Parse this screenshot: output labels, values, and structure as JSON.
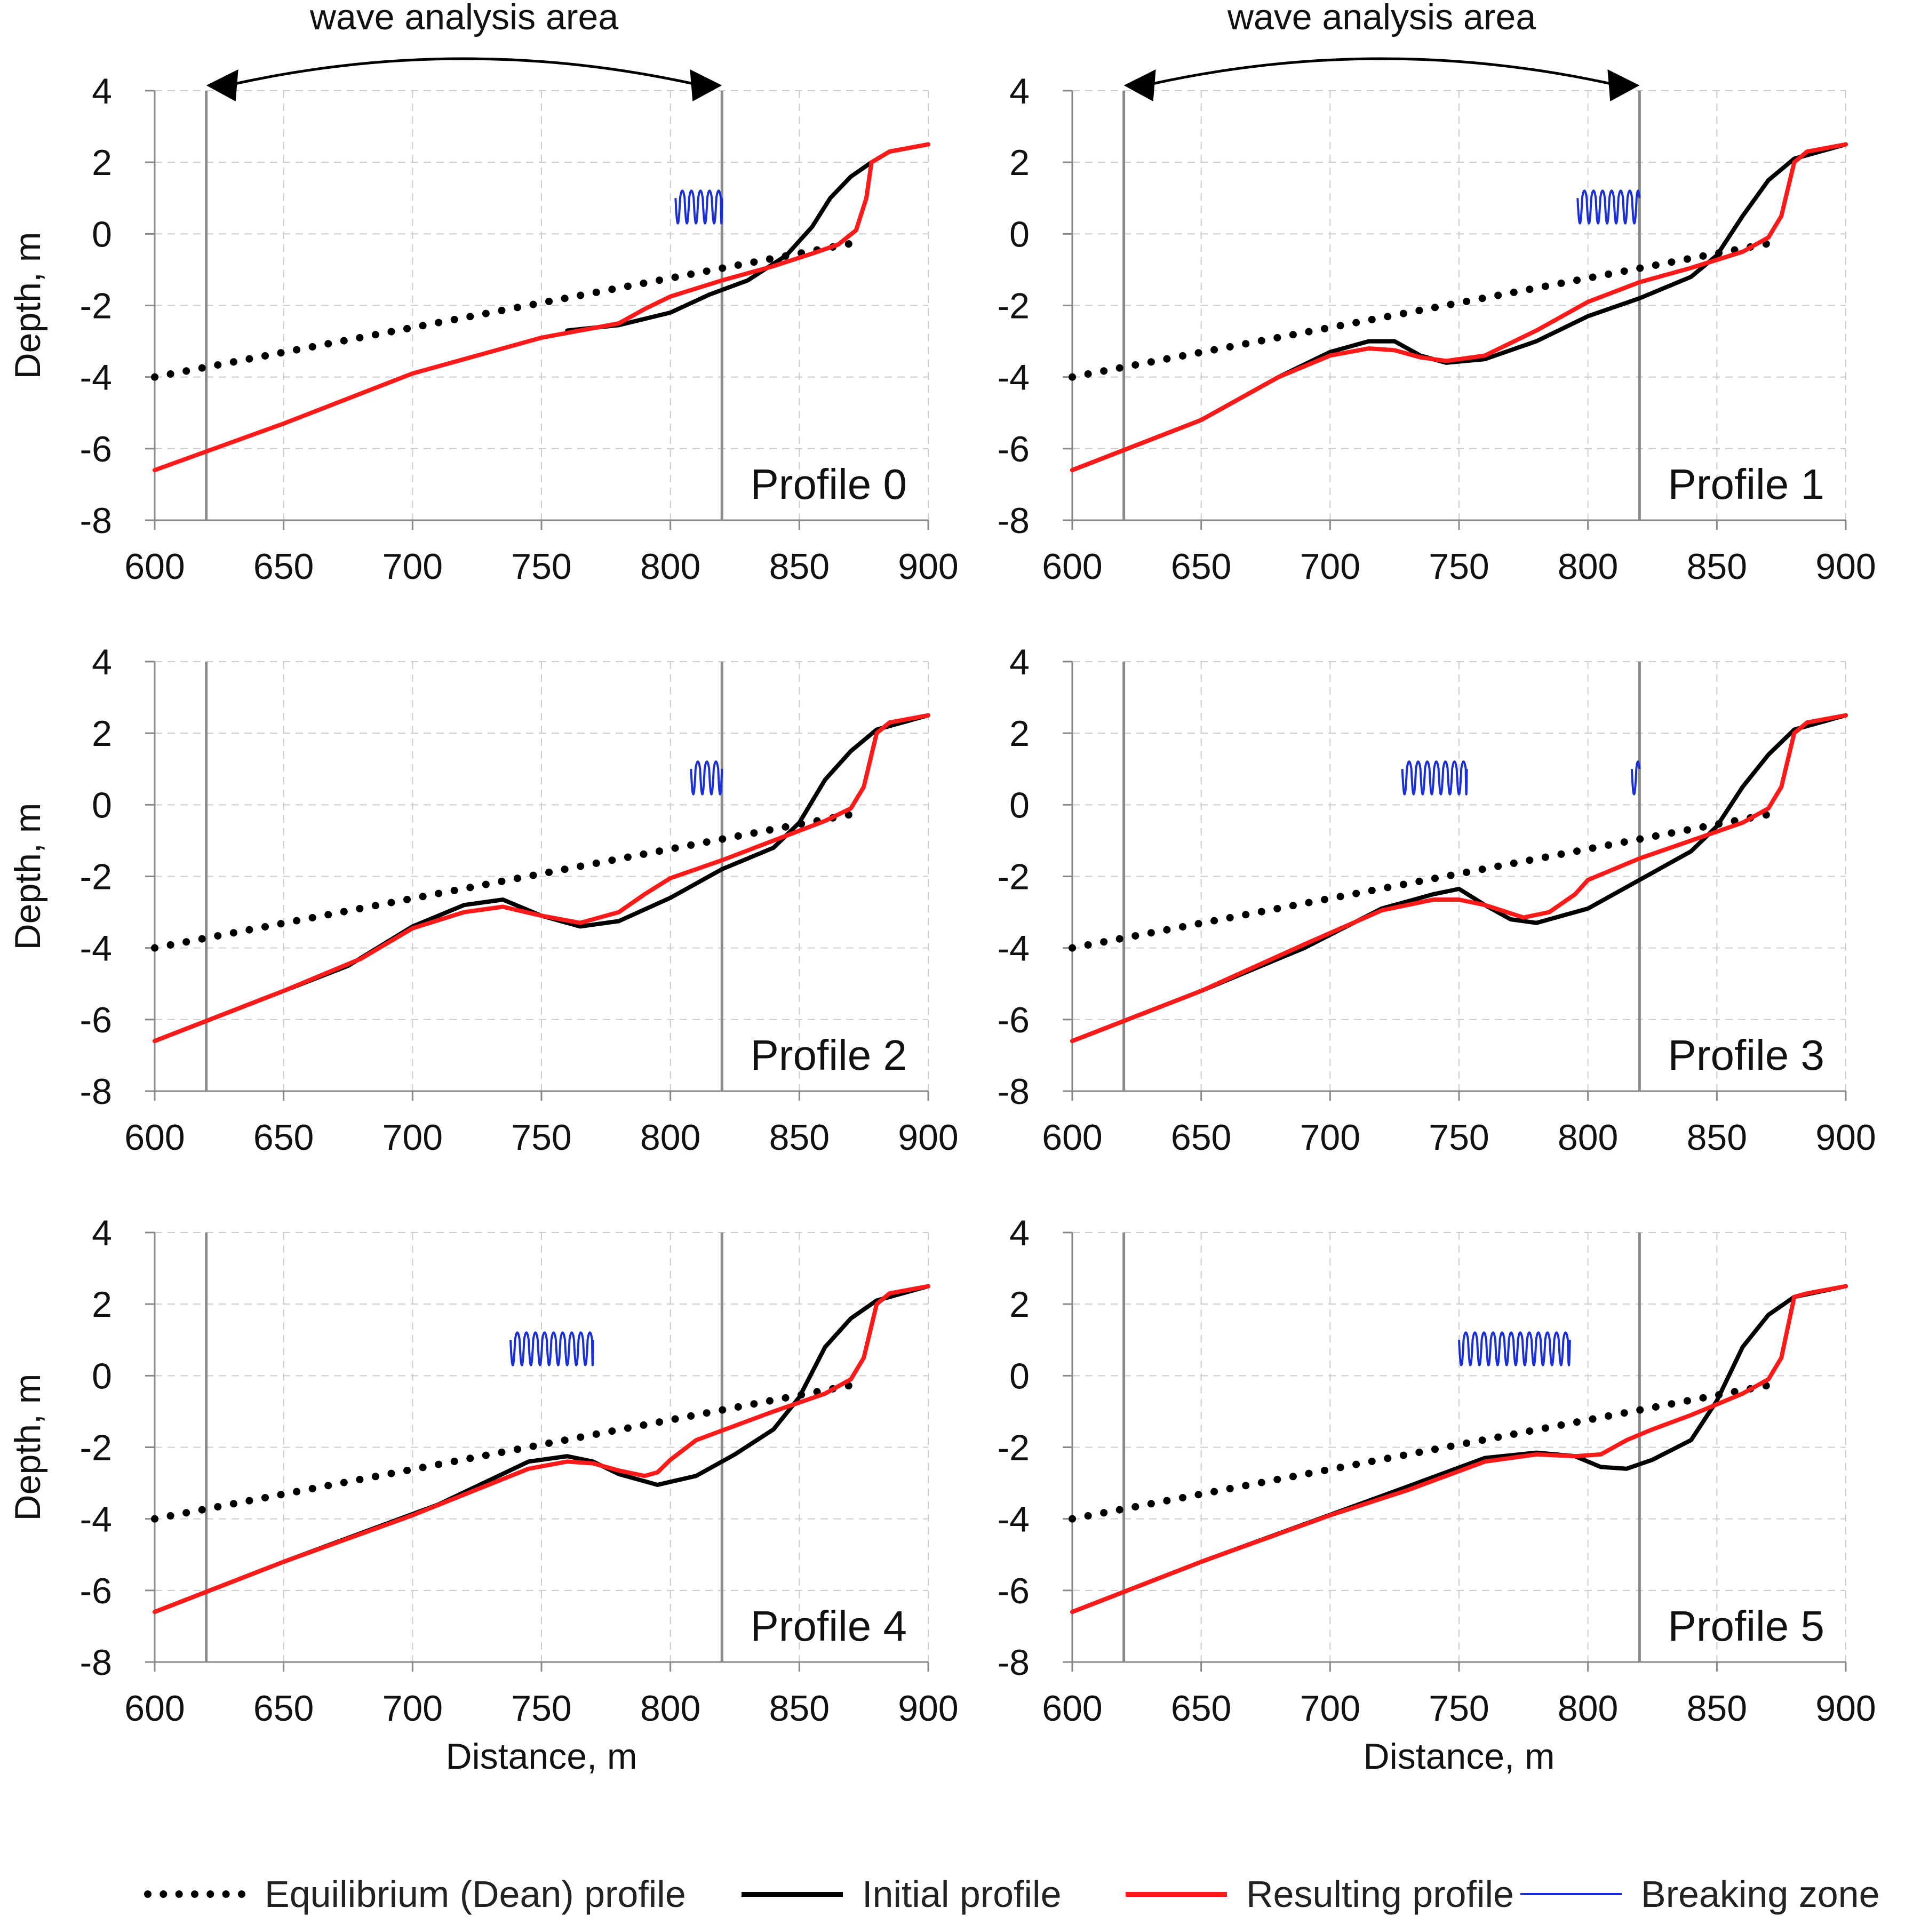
{
  "chart_data": [
    {
      "type": "line",
      "label": "Profile 0",
      "xlabel": "",
      "ylabel": "Depth, m",
      "xlim": [
        600,
        900
      ],
      "ylim": [
        -8,
        4
      ],
      "xticks": [
        "600",
        "650",
        "700",
        "750",
        "800",
        "850",
        "900"
      ],
      "yticks": [
        "4",
        "2",
        "0",
        "-2",
        "-4",
        "-6",
        "-8"
      ],
      "annotation": "wave analysis area",
      "analysis_area": [
        620,
        820
      ],
      "equilibrium": {
        "x": [
          600,
          875
        ],
        "y": [
          -4.0,
          -0.2
        ]
      },
      "initial": {
        "x": [
          760,
          780,
          800,
          815,
          830,
          845,
          855,
          862,
          870,
          878,
          885,
          900
        ],
        "y": [
          -2.7,
          -2.55,
          -2.2,
          -1.7,
          -1.3,
          -0.6,
          0.2,
          1.0,
          1.6,
          2.0,
          2.3,
          2.5
        ]
      },
      "resulting": {
        "x": [
          600,
          650,
          700,
          750,
          765,
          780,
          790,
          800,
          820,
          840,
          855,
          865,
          872,
          876,
          878,
          885,
          900
        ],
        "y": [
          -6.6,
          -5.3,
          -3.9,
          -2.9,
          -2.7,
          -2.5,
          -2.1,
          -1.75,
          -1.3,
          -0.9,
          -0.55,
          -0.3,
          0.1,
          1.0,
          2.0,
          2.3,
          2.5
        ]
      },
      "breaking": [
        [
          802,
          820
        ]
      ]
    },
    {
      "type": "line",
      "label": "Profile 1",
      "xlabel": "",
      "ylabel": "",
      "xlim": [
        600,
        900
      ],
      "ylim": [
        -8,
        4
      ],
      "xticks": [
        "600",
        "650",
        "700",
        "750",
        "800",
        "850",
        "900"
      ],
      "yticks": [
        "4",
        "2",
        "0",
        "-2",
        "-4",
        "-6",
        "-8"
      ],
      "annotation": "wave analysis area",
      "analysis_area": [
        620,
        820
      ],
      "equilibrium": {
        "x": [
          600,
          875
        ],
        "y": [
          -4.0,
          -0.2
        ]
      },
      "initial": {
        "x": [
          600,
          650,
          680,
          700,
          715,
          725,
          735,
          745,
          760,
          780,
          800,
          820,
          840,
          850,
          860,
          870,
          880,
          900
        ],
        "y": [
          -6.6,
          -5.2,
          -4.0,
          -3.3,
          -3.0,
          -3.0,
          -3.4,
          -3.6,
          -3.5,
          -3.0,
          -2.3,
          -1.8,
          -1.2,
          -0.6,
          0.5,
          1.5,
          2.1,
          2.5
        ]
      },
      "resulting": {
        "x": [
          600,
          650,
          680,
          700,
          715,
          725,
          735,
          745,
          760,
          780,
          790,
          800,
          820,
          840,
          860,
          870,
          875,
          880,
          885,
          900
        ],
        "y": [
          -6.6,
          -5.2,
          -4.0,
          -3.4,
          -3.2,
          -3.25,
          -3.45,
          -3.55,
          -3.4,
          -2.7,
          -2.3,
          -1.9,
          -1.35,
          -0.95,
          -0.5,
          -0.1,
          0.5,
          2.0,
          2.3,
          2.5
        ]
      },
      "breaking": [
        [
          796,
          820
        ]
      ]
    },
    {
      "type": "line",
      "label": "Profile 2",
      "xlabel": "",
      "ylabel": "Depth, m",
      "xlim": [
        600,
        900
      ],
      "ylim": [
        -8,
        4
      ],
      "xticks": [
        "600",
        "650",
        "700",
        "750",
        "800",
        "850",
        "900"
      ],
      "yticks": [
        "4",
        "2",
        "0",
        "-2",
        "-4",
        "-6",
        "-8"
      ],
      "annotation": "",
      "analysis_area": [
        620,
        820
      ],
      "equilibrium": {
        "x": [
          600,
          875
        ],
        "y": [
          -4.0,
          -0.2
        ]
      },
      "initial": {
        "x": [
          600,
          650,
          675,
          700,
          720,
          735,
          750,
          765,
          780,
          800,
          820,
          840,
          850,
          860,
          870,
          880,
          900
        ],
        "y": [
          -6.6,
          -5.2,
          -4.5,
          -3.4,
          -2.8,
          -2.65,
          -3.1,
          -3.4,
          -3.25,
          -2.6,
          -1.8,
          -1.2,
          -0.5,
          0.7,
          1.5,
          2.1,
          2.5
        ]
      },
      "resulting": {
        "x": [
          600,
          650,
          680,
          700,
          720,
          735,
          750,
          765,
          780,
          790,
          800,
          820,
          840,
          860,
          870,
          875,
          880,
          885,
          900
        ],
        "y": [
          -6.6,
          -5.2,
          -4.3,
          -3.45,
          -3.0,
          -2.85,
          -3.1,
          -3.3,
          -3.0,
          -2.5,
          -2.05,
          -1.55,
          -1.0,
          -0.45,
          -0.1,
          0.5,
          2.0,
          2.3,
          2.5
        ]
      },
      "breaking": [
        [
          808,
          820
        ]
      ]
    },
    {
      "type": "line",
      "label": "Profile 3",
      "xlabel": "",
      "ylabel": "",
      "xlim": [
        600,
        900
      ],
      "ylim": [
        -8,
        4
      ],
      "xticks": [
        "600",
        "650",
        "700",
        "750",
        "800",
        "850",
        "900"
      ],
      "yticks": [
        "4",
        "2",
        "0",
        "-2",
        "-4",
        "-6",
        "-8"
      ],
      "annotation": "",
      "analysis_area": [
        620,
        820
      ],
      "equilibrium": {
        "x": [
          600,
          875
        ],
        "y": [
          -4.0,
          -0.2
        ]
      },
      "initial": {
        "x": [
          600,
          650,
          690,
          720,
          740,
          750,
          760,
          770,
          780,
          800,
          820,
          840,
          850,
          860,
          870,
          880,
          900
        ],
        "y": [
          -6.6,
          -5.2,
          -4.0,
          -2.9,
          -2.5,
          -2.35,
          -2.8,
          -3.2,
          -3.3,
          -2.9,
          -2.1,
          -1.3,
          -0.6,
          0.5,
          1.4,
          2.1,
          2.5
        ]
      },
      "resulting": {
        "x": [
          600,
          650,
          690,
          720,
          740,
          750,
          760,
          775,
          785,
          795,
          800,
          820,
          840,
          860,
          870,
          875,
          880,
          885,
          900
        ],
        "y": [
          -6.6,
          -5.2,
          -3.9,
          -2.95,
          -2.65,
          -2.65,
          -2.8,
          -3.15,
          -3.0,
          -2.5,
          -2.1,
          -1.5,
          -1.0,
          -0.5,
          -0.1,
          0.5,
          2.0,
          2.3,
          2.5
        ]
      },
      "breaking": [
        [
          728,
          753
        ],
        [
          817,
          820
        ]
      ]
    },
    {
      "type": "line",
      "label": "Profile 4",
      "xlabel": "Distance, m",
      "ylabel": "Depth, m",
      "xlim": [
        600,
        900
      ],
      "ylim": [
        -8,
        4
      ],
      "xticks": [
        "600",
        "650",
        "700",
        "750",
        "800",
        "850",
        "900"
      ],
      "yticks": [
        "4",
        "2",
        "0",
        "-2",
        "-4",
        "-6",
        "-8"
      ],
      "annotation": "",
      "analysis_area": [
        620,
        820
      ],
      "equilibrium": {
        "x": [
          600,
          875
        ],
        "y": [
          -4.0,
          -0.2
        ]
      },
      "initial": {
        "x": [
          600,
          650,
          710,
          745,
          760,
          770,
          780,
          795,
          810,
          825,
          840,
          850,
          860,
          870,
          880,
          900
        ],
        "y": [
          -6.6,
          -5.2,
          -3.6,
          -2.4,
          -2.25,
          -2.4,
          -2.75,
          -3.05,
          -2.8,
          -2.2,
          -1.5,
          -0.6,
          0.8,
          1.6,
          2.1,
          2.5
        ]
      },
      "resulting": {
        "x": [
          600,
          650,
          700,
          745,
          760,
          770,
          780,
          790,
          795,
          800,
          810,
          825,
          840,
          860,
          870,
          875,
          880,
          885,
          900
        ],
        "y": [
          -6.6,
          -5.2,
          -3.9,
          -2.6,
          -2.4,
          -2.45,
          -2.65,
          -2.8,
          -2.7,
          -2.35,
          -1.8,
          -1.4,
          -1.0,
          -0.5,
          -0.1,
          0.5,
          2.0,
          2.3,
          2.5
        ]
      },
      "breaking": [
        [
          738,
          770
        ]
      ]
    },
    {
      "type": "line",
      "label": "Profile 5",
      "xlabel": "Distance, m",
      "ylabel": "",
      "xlim": [
        600,
        900
      ],
      "ylim": [
        -8,
        4
      ],
      "xticks": [
        "600",
        "650",
        "700",
        "750",
        "800",
        "850",
        "900"
      ],
      "yticks": [
        "4",
        "2",
        "0",
        "-2",
        "-4",
        "-6",
        "-8"
      ],
      "annotation": "",
      "analysis_area": [
        620,
        820
      ],
      "equilibrium": {
        "x": [
          600,
          875
        ],
        "y": [
          -4.0,
          -0.2
        ]
      },
      "initial": {
        "x": [
          600,
          650,
          730,
          760,
          780,
          795,
          805,
          815,
          825,
          840,
          850,
          860,
          870,
          880,
          900
        ],
        "y": [
          -6.6,
          -5.2,
          -3.1,
          -2.3,
          -2.15,
          -2.25,
          -2.55,
          -2.6,
          -2.35,
          -1.8,
          -0.7,
          0.8,
          1.7,
          2.2,
          2.5
        ]
      },
      "resulting": {
        "x": [
          600,
          650,
          700,
          730,
          760,
          780,
          795,
          805,
          815,
          825,
          840,
          860,
          870,
          875,
          880,
          885,
          900
        ],
        "y": [
          -6.6,
          -5.2,
          -3.9,
          -3.2,
          -2.4,
          -2.2,
          -2.25,
          -2.2,
          -1.8,
          -1.5,
          -1.1,
          -0.5,
          -0.1,
          0.5,
          2.2,
          2.3,
          2.5
        ]
      },
      "breaking": [
        [
          750,
          793
        ]
      ]
    }
  ],
  "legend": {
    "dean": "Equilibrium (Dean) profile",
    "initial": "Initial profile",
    "resulting": "Resulting profile",
    "breaking": "Breaking zone"
  },
  "colors": {
    "initial": "#000000",
    "resulting": "#ff1a1a",
    "breaking": "#1b2fd6",
    "grid": "#cccccc",
    "axis": "#888888"
  }
}
